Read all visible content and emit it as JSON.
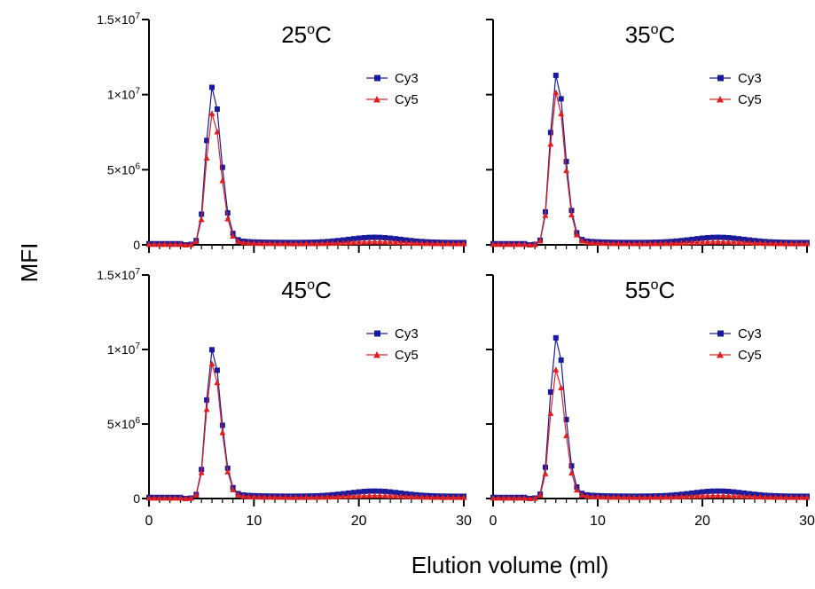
{
  "figure": {
    "ylabel": "MFI",
    "xlabel": "Elution volume (ml)"
  },
  "colors": {
    "cy3": "#1a1a9c",
    "cy5": "#e02020",
    "axis": "#000000"
  },
  "chart_data": [
    {
      "type": "line",
      "title": "25oC",
      "title_base": "25",
      "title_sup": "o",
      "title_unit": "C",
      "xlim": [
        0,
        30
      ],
      "ylim": [
        0,
        15000000
      ],
      "ytick_labels": [
        {
          "base": "1.5×10",
          "sup": "7"
        },
        {
          "base": "1×10",
          "sup": "7"
        },
        {
          "base": "5×10",
          "sup": "6"
        },
        {
          "base": "0",
          "sup": ""
        }
      ],
      "xtick_labels": [],
      "legend": [
        "Cy3",
        "Cy5"
      ],
      "series": [
        {
          "name": "Cy3",
          "peak": 10400000,
          "peak_x": 6.0,
          "tail": 150000,
          "bump": 350000
        },
        {
          "name": "Cy5",
          "peak": 8700000,
          "peak_x": 6.0,
          "tail": 80000,
          "bump": 120000
        }
      ]
    },
    {
      "type": "line",
      "title": "35oC",
      "title_base": "35",
      "title_sup": "o",
      "title_unit": "C",
      "xlim": [
        0,
        30
      ],
      "ylim": [
        0,
        15000000
      ],
      "ytick_labels": [],
      "xtick_labels": [],
      "legend": [
        "Cy3",
        "Cy5"
      ],
      "series": [
        {
          "name": "Cy3",
          "peak": 11200000,
          "peak_x": 6.0,
          "tail": 150000,
          "bump": 350000
        },
        {
          "name": "Cy5",
          "peak": 10100000,
          "peak_x": 6.0,
          "tail": 80000,
          "bump": 120000
        }
      ]
    },
    {
      "type": "line",
      "title": "45oC",
      "title_base": "45",
      "title_sup": "o",
      "title_unit": "C",
      "xlim": [
        0,
        30
      ],
      "ylim": [
        0,
        15000000
      ],
      "ytick_labels": [
        {
          "base": "1.5×10",
          "sup": "7"
        },
        {
          "base": "1×10",
          "sup": "7"
        },
        {
          "base": "5×10",
          "sup": "6"
        },
        {
          "base": "0",
          "sup": ""
        }
      ],
      "xtick_labels": [
        "0",
        "10",
        "20",
        "30"
      ],
      "legend": [
        "Cy3",
        "Cy5"
      ],
      "series": [
        {
          "name": "Cy3",
          "peak": 9900000,
          "peak_x": 6.0,
          "tail": 150000,
          "bump": 350000
        },
        {
          "name": "Cy5",
          "peak": 9000000,
          "peak_x": 6.0,
          "tail": 80000,
          "bump": 120000
        }
      ]
    },
    {
      "type": "line",
      "title": "55oC",
      "title_base": "55",
      "title_sup": "o",
      "title_unit": "C",
      "xlim": [
        0,
        30
      ],
      "ylim": [
        0,
        15000000
      ],
      "ytick_labels": [],
      "xtick_labels": [
        "0",
        "10",
        "20",
        "30"
      ],
      "legend": [
        "Cy3",
        "Cy5"
      ],
      "series": [
        {
          "name": "Cy3",
          "peak": 10700000,
          "peak_x": 6.0,
          "tail": 150000,
          "bump": 350000
        },
        {
          "name": "Cy5",
          "peak": 8600000,
          "peak_x": 6.0,
          "tail": 80000,
          "bump": 120000
        }
      ]
    }
  ]
}
